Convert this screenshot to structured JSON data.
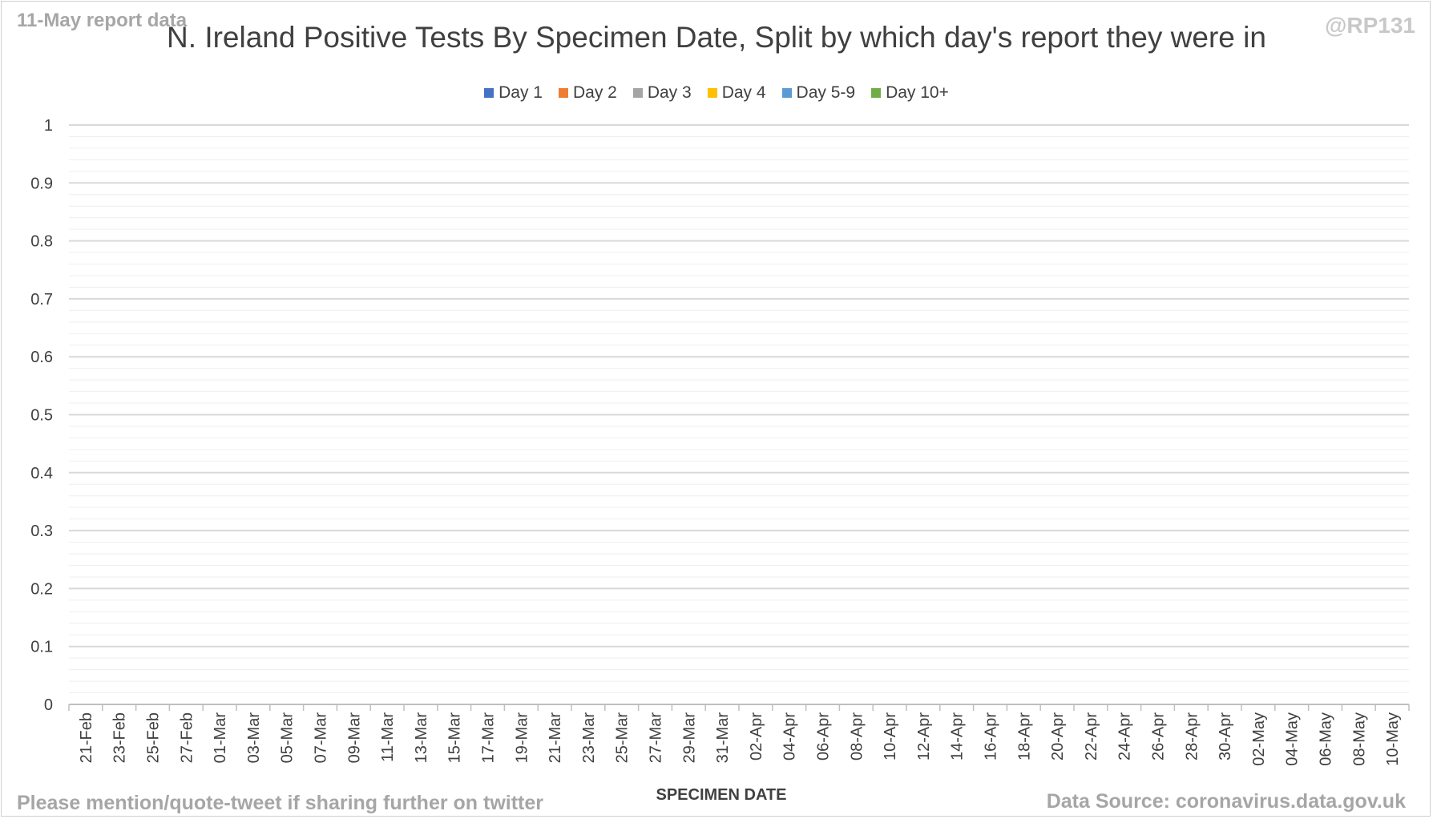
{
  "header": {
    "report_date": "11-May report data",
    "handle": "@RP131"
  },
  "footer": {
    "note": "Please mention/quote-tweet if sharing further on twitter",
    "source": "Data Source: coronavirus.data.gov.uk"
  },
  "colors": {
    "day1": "#4472c4",
    "day2": "#ed7d31",
    "day3": "#a5a5a5",
    "day4": "#ffc000",
    "day5_9": "#5b9bd5",
    "day10": "#70ad47"
  },
  "chart_data": {
    "type": "bar",
    "stacked": true,
    "title": "N. Ireland Positive Tests By Specimen Date, Split by which day's report they were in",
    "xlabel": "SPECIMEN DATE",
    "ylabel": "",
    "ylim": [
      0,
      1
    ],
    "yticks": [
      "0",
      "0.1",
      "0.2",
      "0.3",
      "0.4",
      "0.5",
      "0.6",
      "0.7",
      "0.8",
      "0.9",
      "1"
    ],
    "grid": true,
    "legend_position": "top",
    "x_tick_labels": [
      "21-Feb",
      "23-Feb",
      "25-Feb",
      "27-Feb",
      "01-Mar",
      "03-Mar",
      "05-Mar",
      "07-Mar",
      "09-Mar",
      "11-Mar",
      "13-Mar",
      "15-Mar",
      "17-Mar",
      "19-Mar",
      "21-Mar",
      "23-Mar",
      "25-Mar",
      "27-Mar",
      "29-Mar",
      "31-Mar",
      "02-Apr",
      "04-Apr",
      "06-Apr",
      "08-Apr",
      "10-Apr",
      "12-Apr",
      "14-Apr",
      "16-Apr",
      "18-Apr",
      "20-Apr",
      "22-Apr",
      "24-Apr",
      "26-Apr",
      "28-Apr",
      "30-Apr",
      "02-May",
      "04-May",
      "06-May",
      "08-May",
      "10-May"
    ],
    "series": [
      {
        "name": "Day 1",
        "color": "#4472c4",
        "values": []
      },
      {
        "name": "Day 2",
        "color": "#ed7d31",
        "values": []
      },
      {
        "name": "Day 3",
        "color": "#a5a5a5",
        "values": []
      },
      {
        "name": "Day 4",
        "color": "#ffc000",
        "values": []
      },
      {
        "name": "Day 5-9",
        "color": "#5b9bd5",
        "values": []
      },
      {
        "name": "Day 10+",
        "color": "#70ad47",
        "values": []
      }
    ]
  }
}
